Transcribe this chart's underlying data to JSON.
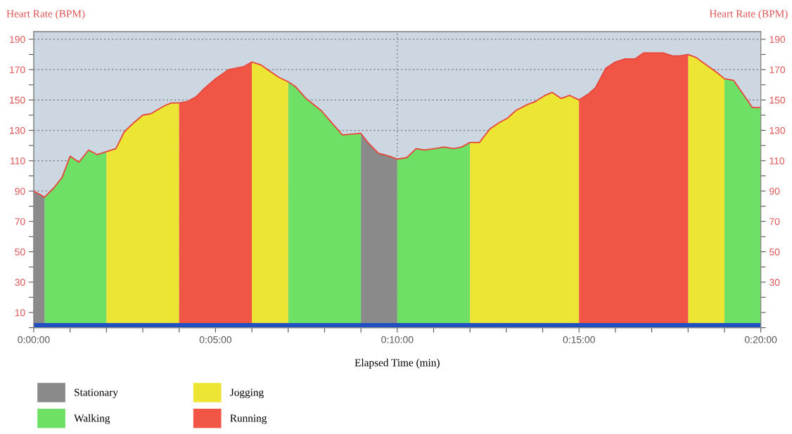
{
  "chart_data": {
    "type": "area",
    "ylabel": "Heart Rate (BPM)",
    "y2label": "Heart Rate (BPM)",
    "xlabel": "Elapsed Time (min)",
    "xlim": [
      0,
      20
    ],
    "xticks": [
      {
        "value": 0,
        "label": "0:00:00"
      },
      {
        "value": 1,
        "label": null
      },
      {
        "value": 2,
        "label": null
      },
      {
        "value": 3,
        "label": null
      },
      {
        "value": 4,
        "label": null
      },
      {
        "value": 5,
        "label": "0:05:00"
      },
      {
        "value": 6,
        "label": null
      },
      {
        "value": 7,
        "label": null
      },
      {
        "value": 8,
        "label": null
      },
      {
        "value": 9,
        "label": null
      },
      {
        "value": 10,
        "label": "0:10:00"
      },
      {
        "value": 11,
        "label": null
      },
      {
        "value": 12,
        "label": null
      },
      {
        "value": 13,
        "label": null
      },
      {
        "value": 14,
        "label": null
      },
      {
        "value": 15,
        "label": "0:15:00"
      },
      {
        "value": 16,
        "label": null
      },
      {
        "value": 17,
        "label": null
      },
      {
        "value": 18,
        "label": null
      },
      {
        "value": 19,
        "label": null
      },
      {
        "value": 20,
        "label": "0:20:00"
      }
    ],
    "ylim": [
      0,
      195
    ],
    "yticks": [
      {
        "value": 0,
        "label": null
      },
      10,
      {
        "value": 20,
        "label": null
      },
      30,
      {
        "value": 40,
        "label": null
      },
      50,
      {
        "value": 60,
        "label": null
      },
      70,
      {
        "value": 80,
        "label": null
      },
      90,
      {
        "value": 100,
        "label": null
      },
      110,
      {
        "value": 120,
        "label": null
      },
      130,
      {
        "value": 140,
        "label": null
      },
      150,
      {
        "value": 160,
        "label": null
      },
      170,
      {
        "value": 180,
        "label": null
      },
      190
    ],
    "y2lim": [
      0,
      195
    ],
    "y2ticks": [
      {
        "value": 0,
        "label": null
      },
      {
        "value": 10,
        "label": null
      },
      {
        "value": 20,
        "label": null
      },
      30,
      {
        "value": 40,
        "label": null
      },
      50,
      {
        "value": 60,
        "label": null
      },
      70,
      {
        "value": 80,
        "label": null
      },
      90,
      {
        "value": 100,
        "label": null
      },
      110,
      {
        "value": 120,
        "label": null
      },
      130,
      {
        "value": 140,
        "label": null
      },
      150,
      {
        "value": 160,
        "label": null
      },
      170,
      {
        "value": 180,
        "label": null
      },
      190
    ],
    "grid": "y",
    "legend": "bottom left",
    "ref_lines": [
      {
        "axis": "x",
        "value": 10,
        "color": "#777777",
        "line_style": "dotted"
      }
    ],
    "bands": [
      {
        "axis": "y",
        "from": 0,
        "to": 3,
        "color": "#1f4fc0"
      }
    ],
    "series": [
      {
        "name": "Stationary",
        "color": "#8a8a8a",
        "x": [
          0,
          0.3,
          null,
          9,
          9.19,
          9.48,
          9.78,
          10
        ],
        "values": [
          90,
          86,
          null,
          128,
          122,
          115,
          113,
          111
        ]
      },
      {
        "name": "Walking",
        "color": "#6fe066",
        "x": [
          0.3,
          0.55,
          0.78,
          1.0,
          1.24,
          1.51,
          1.75,
          2.0,
          null,
          7.0,
          7.19,
          7.49,
          7.91,
          8.16,
          8.49,
          9.0,
          null,
          10.0,
          10.26,
          10.52,
          10.74,
          11.03,
          11.29,
          11.55,
          11.77,
          12.0,
          null,
          19.0,
          19.25,
          19.51,
          19.77,
          20
        ],
        "values": [
          86,
          92,
          99,
          113,
          109,
          117,
          114,
          116,
          null,
          162,
          159,
          151,
          143,
          136,
          127,
          128,
          null,
          111,
          112,
          118,
          117,
          118,
          119,
          118,
          119,
          122,
          null,
          164,
          163,
          154,
          145,
          145
        ]
      },
      {
        "name": "Jogging",
        "color": "#ede533",
        "x": [
          2.0,
          2.26,
          2.49,
          2.75,
          3.0,
          3.23,
          3.58,
          3.78,
          4.0,
          null,
          6.0,
          6.26,
          6.49,
          6.74,
          7.0,
          null,
          12.0,
          12.26,
          12.55,
          12.8,
          13.03,
          13.26,
          13.58,
          13.8,
          14.06,
          14.26,
          14.51,
          14.74,
          15.0,
          null,
          18.0,
          18.22,
          18.51,
          18.8,
          19.0
        ],
        "values": [
          116,
          118,
          129,
          135,
          140,
          141,
          146,
          148,
          148,
          null,
          175,
          173,
          169,
          165,
          162,
          null,
          122,
          122,
          131,
          135,
          138,
          143,
          147,
          149,
          153,
          155,
          151,
          153,
          150,
          null,
          180,
          178,
          173,
          168,
          164
        ]
      },
      {
        "name": "Running",
        "color": "#f05545",
        "x": [
          4.0,
          4.23,
          4.46,
          4.71,
          5.0,
          5.36,
          5.78,
          6.0,
          null,
          15.0,
          15.26,
          15.45,
          15.74,
          16.0,
          16.25,
          16.54,
          16.77,
          17.31,
          17.57,
          17.77,
          18.0
        ],
        "values": [
          148,
          149,
          152,
          158,
          164,
          170,
          172,
          175,
          null,
          150,
          154,
          158,
          171,
          175,
          177,
          177,
          181,
          181,
          179,
          179,
          180
        ]
      },
      {
        "type": "line",
        "color": "#e8463c",
        "x": [
          0,
          0.3,
          0.55,
          0.78,
          1.0,
          1.24,
          1.51,
          1.75,
          2.0,
          2.26,
          2.49,
          2.75,
          3.0,
          3.23,
          3.58,
          3.78,
          4.0,
          4.23,
          4.46,
          4.71,
          5.0,
          5.36,
          5.78,
          6.0,
          6.26,
          6.49,
          6.74,
          7.0,
          7.19,
          7.49,
          7.91,
          8.16,
          8.49,
          9.0,
          9.19,
          9.48,
          9.78,
          10.0,
          10.26,
          10.52,
          10.74,
          11.03,
          11.29,
          11.55,
          11.77,
          12.0,
          12.26,
          12.55,
          12.8,
          13.03,
          13.26,
          13.58,
          13.8,
          14.06,
          14.26,
          14.51,
          14.74,
          15.0,
          15.26,
          15.45,
          15.74,
          16.0,
          16.25,
          16.54,
          16.77,
          17.31,
          17.57,
          17.77,
          18.0,
          18.22,
          18.51,
          18.8,
          19.0,
          19.25,
          19.51,
          19.77,
          20
        ],
        "values": [
          90,
          86,
          92,
          99,
          113,
          109,
          117,
          114,
          116,
          118,
          129,
          135,
          140,
          141,
          146,
          148,
          148,
          149,
          152,
          158,
          164,
          170,
          172,
          175,
          173,
          169,
          165,
          162,
          159,
          151,
          143,
          136,
          127,
          128,
          122,
          115,
          113,
          111,
          112,
          118,
          117,
          118,
          119,
          118,
          119,
          122,
          122,
          131,
          135,
          138,
          143,
          147,
          149,
          153,
          155,
          151,
          153,
          150,
          154,
          158,
          171,
          175,
          177,
          177,
          181,
          181,
          179,
          179,
          180,
          178,
          173,
          168,
          164,
          163,
          154,
          145,
          145
        ]
      }
    ]
  }
}
